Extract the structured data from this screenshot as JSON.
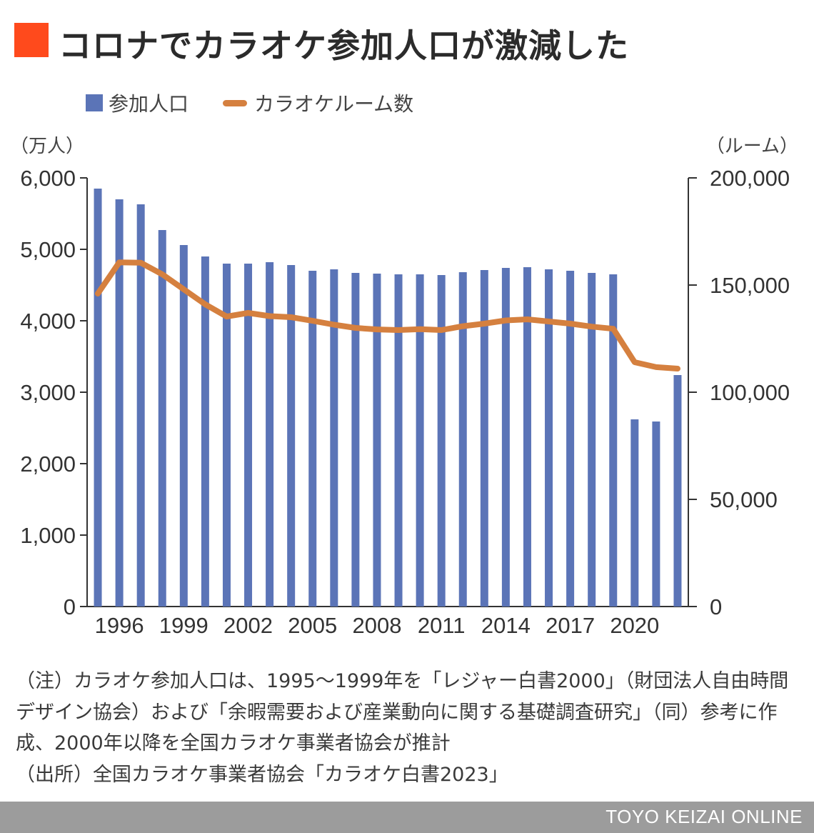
{
  "title": "コロナでカラオケ参加人口が激減した",
  "colors": {
    "title_mark": "#ff4a1c",
    "bars": "#5b74b7",
    "line": "#d5803f",
    "axis": "#333333",
    "footer": "#9c9c9c"
  },
  "legend": {
    "bar_label": "参加人口",
    "line_label": "カラオケルーム数"
  },
  "units": {
    "left": "（万人）",
    "right": "（ルーム）"
  },
  "chart_data": {
    "type": "bar",
    "years": [
      1995,
      1996,
      1997,
      1998,
      1999,
      2000,
      2001,
      2002,
      2003,
      2004,
      2005,
      2006,
      2007,
      2008,
      2009,
      2010,
      2011,
      2012,
      2013,
      2014,
      2015,
      2016,
      2017,
      2018,
      2019,
      2020,
      2021,
      2022
    ],
    "series": [
      {
        "name": "参加人口",
        "axis": "left",
        "values": [
          5850,
          5700,
          5630,
          5270,
          5060,
          4900,
          4800,
          4800,
          4820,
          4780,
          4700,
          4720,
          4670,
          4660,
          4650,
          4650,
          4640,
          4680,
          4710,
          4740,
          4750,
          4720,
          4700,
          4670,
          4650,
          2620,
          2590,
          3240
        ]
      },
      {
        "name": "カラオケルーム数",
        "axis": "right",
        "type": "line",
        "values": [
          146000,
          160600,
          160400,
          155000,
          148000,
          141000,
          135300,
          137000,
          135500,
          135000,
          133300,
          131500,
          130000,
          129300,
          129000,
          129400,
          129000,
          130800,
          132000,
          133500,
          134000,
          133000,
          132000,
          130600,
          129600,
          114000,
          111700,
          111000
        ]
      }
    ],
    "x_ticks": [
      "1996",
      "1999",
      "2002",
      "2005",
      "2008",
      "2011",
      "2014",
      "2017",
      "2020"
    ],
    "y_left": {
      "min": 0,
      "max": 6000,
      "ticks": [
        "0",
        "1,000",
        "2,000",
        "3,000",
        "4,000",
        "5,000",
        "6,000"
      ]
    },
    "y_right": {
      "min": 0,
      "max": 200000,
      "ticks": [
        "0",
        "50,000",
        "100,000",
        "150,000",
        "200,000"
      ]
    },
    "legend_position": "top-left",
    "grid": false
  },
  "notes": [
    "（注）カラオケ参加人口は、1995〜1999年を「レジャー白書2000」（財団法人自由時間デザイン協会）および「余暇需要および産業動向に関する基礎調査研究」（同）参考に作成、2000年以降を全国カラオケ事業者協会が推計",
    "（出所）全国カラオケ事業者協会「カラオケ白書2023」"
  ],
  "footer": "TOYO KEIZAI ONLINE"
}
